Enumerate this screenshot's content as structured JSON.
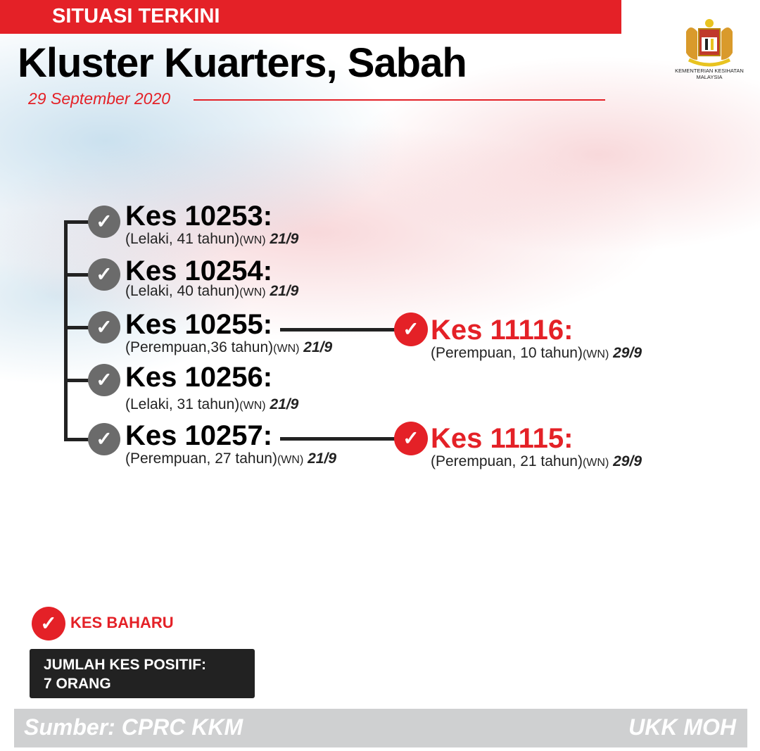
{
  "header": {
    "banner": "SITUASI TERKINI",
    "title": "Kluster Kuarters, Sabah",
    "date": "29 September 2020"
  },
  "logo": {
    "text": "KEMENTERIAN KESIHATAN MALAYSIA"
  },
  "colors": {
    "accent": "#e42127",
    "existing_case": "#6b6b6b"
  },
  "cases": [
    {
      "title": "Kes 10253:",
      "detail": "(Lelaki, 41 tahun)",
      "status": "(WN)",
      "date": "21/9"
    },
    {
      "title": "Kes 10254:",
      "detail": "(Lelaki, 40 tahun)",
      "status": "(WN)",
      "date": "21/9"
    },
    {
      "title": "Kes 10255:",
      "detail": "(Perempuan,36 tahun)",
      "status": "(WN)",
      "date": "21/9"
    },
    {
      "title": "Kes 10256:",
      "detail": "(Lelaki, 31 tahun)",
      "status": "(WN)",
      "date": "21/9"
    },
    {
      "title": "Kes 10257:",
      "detail": "(Perempuan, 27 tahun)",
      "status": "(WN)",
      "date": "21/9"
    }
  ],
  "new_cases": [
    {
      "title": "Kes 11116:",
      "detail": "(Perempuan, 10 tahun)",
      "status": "(WN)",
      "date": "29/9",
      "linked_to": "Kes 10255"
    },
    {
      "title": "Kes 11115:",
      "detail": "(Perempuan, 21 tahun)",
      "status": "(WN)",
      "date": "29/9",
      "linked_to": "Kes 10257"
    }
  ],
  "legend": {
    "new_case": "KES BAHARU"
  },
  "total": {
    "line1": "JUMLAH KES POSITIF:",
    "line2": "7 ORANG"
  },
  "footer": {
    "source": "Sumber: CPRC KKM",
    "credit": "UKK MOH"
  }
}
